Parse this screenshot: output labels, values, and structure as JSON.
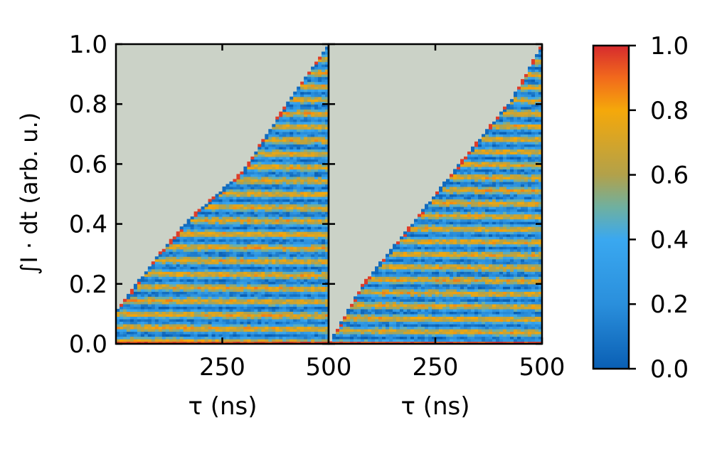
{
  "chart_data": {
    "type": "heatmap",
    "panels": [
      {
        "xlabel": "τ (ns)",
        "ylabel": "∫I · dt (arb. u.)",
        "xticks": [
          "250",
          "500"
        ],
        "xtick_values": [
          250,
          500
        ],
        "yticks": [
          "0.0",
          "0.2",
          "0.4",
          "0.6",
          "0.8",
          "1.0"
        ],
        "ytick_values": [
          0.0,
          0.2,
          0.4,
          0.6,
          0.8,
          1.0
        ],
        "xlim": [
          0,
          500
        ],
        "ylim": [
          0.0,
          1.0
        ],
        "masked_region_start": [
          [
            0,
            0.11
          ],
          [
            100,
            0.3
          ],
          [
            180,
            0.43
          ],
          [
            300,
            0.58
          ],
          [
            400,
            0.8
          ],
          [
            500,
            1.0
          ]
        ],
        "fringe_period": 0.045
      },
      {
        "xlabel": "τ (ns)",
        "xticks": [
          "250",
          "500"
        ],
        "xtick_values": [
          250,
          500
        ],
        "xlim": [
          0,
          500
        ],
        "ylim": [
          0.0,
          1.0
        ],
        "masked_region_start": [
          [
            0,
            0.0
          ],
          [
            80,
            0.2
          ],
          [
            160,
            0.34
          ],
          [
            250,
            0.5
          ],
          [
            350,
            0.68
          ],
          [
            430,
            0.82
          ],
          [
            500,
            1.0
          ]
        ],
        "fringe_period": 0.043
      }
    ],
    "colorbar": {
      "ticks": [
        "0.0",
        "0.2",
        "0.4",
        "0.6",
        "0.8",
        "1.0"
      ],
      "tick_values": [
        0.0,
        0.2,
        0.4,
        0.6,
        0.8,
        1.0
      ],
      "range": [
        0.0,
        1.0
      ],
      "colors": [
        "#0a5fb4",
        "#3aa8f0",
        "#b2a14a",
        "#f5a80a",
        "#f26a1c",
        "#d62a2e"
      ]
    },
    "mask_color": "#cbd2c7"
  }
}
